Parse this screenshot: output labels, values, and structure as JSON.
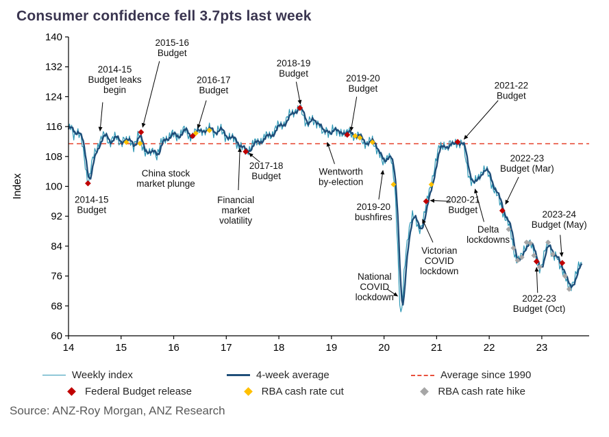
{
  "source": "Source: ANZ-Roy Morgan, ANZ Research",
  "chart_data": {
    "type": "line",
    "title": "Consumer confidence fell 3.7pts last week",
    "ylabel": "Index",
    "ylim": [
      60,
      140
    ],
    "yticks": [
      60,
      68,
      76,
      84,
      92,
      100,
      108,
      116,
      124,
      132,
      140
    ],
    "xlim": [
      14,
      23.9
    ],
    "xticks": [
      14,
      15,
      16,
      17,
      18,
      19,
      20,
      21,
      22,
      23
    ],
    "xtick_labels": [
      "14",
      "15",
      "16",
      "17",
      "18",
      "19",
      "20",
      "21",
      "22",
      "23"
    ],
    "average_since_1990": 111.4,
    "average_label": "Average since 1990",
    "colors": {
      "average": "#e8503c",
      "axis": "#000000",
      "annotation": "#111111"
    },
    "series": [
      {
        "name": "Weekly index",
        "color": "#2d97b5",
        "width": 1.2,
        "derive": "weekly_noise"
      },
      {
        "name": "4-week average",
        "color": "#1f4e79",
        "width": 2.4,
        "derive": "rolling4"
      }
    ],
    "noise": {
      "amp1": 1.1,
      "freq1": 2.31,
      "amp2": 0.8,
      "freq2": 0.57,
      "phase2": 1.3,
      "step": 0.02
    },
    "base_points": [
      [
        14.0,
        114.5
      ],
      [
        14.05,
        116
      ],
      [
        14.1,
        114
      ],
      [
        14.15,
        115.5
      ],
      [
        14.2,
        113.5
      ],
      [
        14.25,
        112
      ],
      [
        14.3,
        108
      ],
      [
        14.35,
        103
      ],
      [
        14.38,
        100.8
      ],
      [
        14.42,
        104
      ],
      [
        14.47,
        107.5
      ],
      [
        14.52,
        110
      ],
      [
        14.6,
        112.5
      ],
      [
        14.7,
        113.5
      ],
      [
        14.78,
        112
      ],
      [
        14.85,
        113
      ],
      [
        14.92,
        112.5
      ],
      [
        15.0,
        112
      ],
      [
        15.05,
        113
      ],
      [
        15.1,
        111.5
      ],
      [
        15.17,
        112.5
      ],
      [
        15.24,
        111
      ],
      [
        15.3,
        112.5
      ],
      [
        15.35,
        113.5
      ],
      [
        15.4,
        111
      ],
      [
        15.47,
        109.5
      ],
      [
        15.55,
        108.2
      ],
      [
        15.62,
        110
      ],
      [
        15.68,
        108.5
      ],
      [
        15.75,
        111
      ],
      [
        15.85,
        113
      ],
      [
        15.95,
        114
      ],
      [
        16.05,
        113
      ],
      [
        16.12,
        114.5
      ],
      [
        16.2,
        115
      ],
      [
        16.28,
        113.5
      ],
      [
        16.36,
        114
      ],
      [
        16.45,
        114.5
      ],
      [
        16.55,
        115.5
      ],
      [
        16.62,
        114.5
      ],
      [
        16.7,
        115.5
      ],
      [
        16.8,
        114.5
      ],
      [
        16.9,
        115
      ],
      [
        17.0,
        113.5
      ],
      [
        17.08,
        112.5
      ],
      [
        17.16,
        112.8
      ],
      [
        17.24,
        111
      ],
      [
        17.3,
        110
      ],
      [
        17.37,
        109.3
      ],
      [
        17.45,
        110.5
      ],
      [
        17.55,
        111.5
      ],
      [
        17.65,
        112.5
      ],
      [
        17.75,
        113
      ],
      [
        17.85,
        114
      ],
      [
        17.95,
        115.5
      ],
      [
        18.05,
        116.5
      ],
      [
        18.15,
        118
      ],
      [
        18.25,
        119.5
      ],
      [
        18.33,
        121
      ],
      [
        18.4,
        120.5
      ],
      [
        18.47,
        118.5
      ],
      [
        18.53,
        117
      ],
      [
        18.6,
        118
      ],
      [
        18.67,
        116.5
      ],
      [
        18.74,
        117.5
      ],
      [
        18.78,
        117
      ],
      [
        18.82,
        114.5
      ],
      [
        18.86,
        113.5
      ],
      [
        18.9,
        115
      ],
      [
        18.95,
        114.5
      ],
      [
        19.02,
        115.5
      ],
      [
        19.1,
        114
      ],
      [
        19.18,
        115
      ],
      [
        19.28,
        113.8
      ],
      [
        19.36,
        114.5
      ],
      [
        19.45,
        113.5
      ],
      [
        19.54,
        113
      ],
      [
        19.62,
        112
      ],
      [
        19.7,
        111.5
      ],
      [
        19.78,
        112
      ],
      [
        19.86,
        110.5
      ],
      [
        19.93,
        108
      ],
      [
        19.98,
        105.5
      ],
      [
        20.03,
        107.5
      ],
      [
        20.08,
        109
      ],
      [
        20.13,
        108
      ],
      [
        20.17,
        103
      ],
      [
        20.2,
        100
      ],
      [
        20.23,
        93
      ],
      [
        20.26,
        84
      ],
      [
        20.29,
        72
      ],
      [
        20.32,
        66
      ],
      [
        20.35,
        69
      ],
      [
        20.38,
        76
      ],
      [
        20.42,
        82
      ],
      [
        20.46,
        87
      ],
      [
        20.5,
        91
      ],
      [
        20.54,
        93
      ],
      [
        20.58,
        91.5
      ],
      [
        20.62,
        89.5
      ],
      [
        20.66,
        87.8
      ],
      [
        20.7,
        89
      ],
      [
        20.74,
        91.5
      ],
      [
        20.78,
        94
      ],
      [
        20.82,
        96
      ],
      [
        20.86,
        98
      ],
      [
        20.9,
        100.5
      ],
      [
        20.94,
        104
      ],
      [
        20.98,
        107
      ],
      [
        21.02,
        109
      ],
      [
        21.06,
        110.5
      ],
      [
        21.1,
        110
      ],
      [
        21.15,
        111.5
      ],
      [
        21.2,
        110.5
      ],
      [
        21.25,
        111.5
      ],
      [
        21.3,
        110.5
      ],
      [
        21.35,
        112
      ],
      [
        21.4,
        112
      ],
      [
        21.45,
        111.5
      ],
      [
        21.5,
        111
      ],
      [
        21.53,
        109
      ],
      [
        21.57,
        106
      ],
      [
        21.62,
        103
      ],
      [
        21.67,
        101
      ],
      [
        21.72,
        100.5
      ],
      [
        21.77,
        102
      ],
      [
        21.82,
        103.5
      ],
      [
        21.87,
        104.5
      ],
      [
        21.92,
        104
      ],
      [
        21.97,
        103.5
      ],
      [
        22.02,
        102
      ],
      [
        22.07,
        100
      ],
      [
        22.12,
        98.5
      ],
      [
        22.17,
        96.5
      ],
      [
        22.22,
        95
      ],
      [
        22.27,
        93
      ],
      [
        22.32,
        91.5
      ],
      [
        22.37,
        89.5
      ],
      [
        22.42,
        86.5
      ],
      [
        22.46,
        83.5
      ],
      [
        22.5,
        81.5
      ],
      [
        22.54,
        80.2
      ],
      [
        22.58,
        80.5
      ],
      [
        22.62,
        81
      ],
      [
        22.66,
        83
      ],
      [
        22.71,
        85
      ],
      [
        22.75,
        85.8
      ],
      [
        22.79,
        84.5
      ],
      [
        22.83,
        82.5
      ],
      [
        22.87,
        81
      ],
      [
        22.91,
        80
      ],
      [
        22.96,
        78.5
      ],
      [
        23.0,
        78.5
      ],
      [
        23.04,
        81
      ],
      [
        23.08,
        83.5
      ],
      [
        23.12,
        85
      ],
      [
        23.16,
        84
      ],
      [
        23.2,
        82
      ],
      [
        23.24,
        80.5
      ],
      [
        23.28,
        80.8
      ],
      [
        23.32,
        79.5
      ],
      [
        23.36,
        79
      ],
      [
        23.4,
        78
      ],
      [
        23.44,
        76
      ],
      [
        23.48,
        73.5
      ],
      [
        23.52,
        72.5
      ],
      [
        23.56,
        73.5
      ],
      [
        23.6,
        75
      ],
      [
        23.64,
        76.5
      ],
      [
        23.68,
        77.5
      ],
      [
        23.72,
        78.5
      ],
      [
        23.76,
        79
      ]
    ],
    "markers": {
      "budget": {
        "label": "Federal Budget release",
        "color": "#c00000",
        "points": [
          [
            14.37,
            100.8
          ],
          [
            15.38,
            114.5
          ],
          [
            16.36,
            113.5
          ],
          [
            17.37,
            109.3
          ],
          [
            18.4,
            121.0
          ],
          [
            19.3,
            113.8
          ],
          [
            20.8,
            96.0
          ],
          [
            21.4,
            111.9
          ],
          [
            22.25,
            93.5
          ],
          [
            22.9,
            79.9
          ],
          [
            23.39,
            79.5
          ]
        ]
      },
      "rate_cut": {
        "label": "RBA cash rate cut",
        "color": "#ffc000",
        "points": [
          [
            15.1,
            111.8
          ],
          [
            15.36,
            111.5
          ],
          [
            16.42,
            114.2
          ],
          [
            16.68,
            115.0
          ],
          [
            19.45,
            113.5
          ],
          [
            19.54,
            113.0
          ],
          [
            19.78,
            111.8
          ],
          [
            20.18,
            100.5
          ],
          [
            20.9,
            100.5
          ]
        ]
      },
      "rate_hike": {
        "label": "RBA cash rate hike",
        "color": "#a6a6a6",
        "points": [
          [
            22.37,
            88.5
          ],
          [
            22.46,
            83.5
          ],
          [
            22.54,
            80.2
          ],
          [
            22.62,
            81.0
          ],
          [
            22.71,
            85.0
          ],
          [
            22.78,
            84.8
          ],
          [
            22.85,
            81.5
          ],
          [
            22.96,
            78.4
          ],
          [
            23.12,
            85.0
          ],
          [
            23.21,
            81.8
          ],
          [
            23.44,
            76.0
          ],
          [
            23.52,
            72.5
          ]
        ]
      }
    },
    "annotations": [
      {
        "lines": [
          "2014-15",
          "Budget leaks",
          "begin"
        ],
        "x": 14.88,
        "y": 128.5,
        "arrow": [
          14.65,
          122.5,
          14.6,
          114.8
        ]
      },
      {
        "lines": [
          "2015-16",
          "Budget"
        ],
        "x": 15.97,
        "y": 137.0,
        "arrow": [
          15.73,
          133.5,
          15.41,
          115.8
        ]
      },
      {
        "lines": [
          "2016-17",
          "Budget"
        ],
        "x": 16.76,
        "y": 127.0,
        "arrow": [
          16.62,
          123.0,
          16.46,
          115.5
        ]
      },
      {
        "lines": [
          "2018-19",
          "Budget"
        ],
        "x": 18.28,
        "y": 131.5,
        "arrow": [
          18.33,
          128.0,
          18.41,
          122.0
        ]
      },
      {
        "lines": [
          "2019-20",
          "Budget"
        ],
        "x": 19.6,
        "y": 127.5,
        "arrow": [
          19.48,
          124.0,
          19.37,
          114.8
        ]
      },
      {
        "lines": [
          "2021-22",
          "Budget"
        ],
        "x": 22.42,
        "y": 125.5,
        "arrow": [
          22.17,
          123.0,
          21.52,
          112.6
        ]
      },
      {
        "lines": [
          "China stock",
          "market plunge"
        ],
        "x": 15.85,
        "y": 102.0,
        "arrow": null
      },
      {
        "lines": [
          "2014-15",
          "Budget"
        ],
        "x": 14.44,
        "y": 95.0,
        "arrow": null
      },
      {
        "lines": [
          "2017-18",
          "Budget"
        ],
        "x": 17.76,
        "y": 104.0,
        "arrow": [
          17.64,
          106.5,
          17.43,
          108.9
        ]
      },
      {
        "lines": [
          "Financial",
          "market",
          "volatility"
        ],
        "x": 17.18,
        "y": 93.5,
        "arrow": [
          17.23,
          99.0,
          17.26,
          110.3
        ]
      },
      {
        "lines": [
          "Wentworth",
          "by-election"
        ],
        "x": 19.18,
        "y": 102.5,
        "arrow": [
          19.06,
          106.0,
          18.92,
          111.8
        ]
      },
      {
        "lines": [
          "2019-20",
          "bushfires"
        ],
        "x": 19.8,
        "y": 93.0,
        "arrow": [
          19.9,
          96.5,
          19.98,
          104.3
        ]
      },
      {
        "lines": [
          "National",
          "COVID",
          "lockdown"
        ],
        "x": 19.82,
        "y": 73.0,
        "arrow": [
          20.06,
          72.5,
          20.26,
          70.6
        ]
      },
      {
        "lines": [
          "Victorian",
          "COVID",
          "lockdown"
        ],
        "x": 21.05,
        "y": 80.0,
        "arrow": [
          20.93,
          85.0,
          20.73,
          91.2
        ]
      },
      {
        "lines": [
          "2020-21",
          "Budget"
        ],
        "x": 21.5,
        "y": 95.0,
        "arrow": [
          21.27,
          96.0,
          20.88,
          96.2
        ]
      },
      {
        "lines": [
          "Delta",
          "lockdowns"
        ],
        "x": 21.98,
        "y": 87.0,
        "arrow": [
          21.9,
          90.5,
          21.73,
          99.3
        ]
      },
      {
        "lines": [
          "2022-23",
          "Budget (Mar)"
        ],
        "x": 22.72,
        "y": 106.0,
        "arrow": [
          22.56,
          102.5,
          22.31,
          95.2
        ]
      },
      {
        "lines": [
          "2023-24",
          "Budget (May)"
        ],
        "x": 23.33,
        "y": 91.0,
        "arrow": [
          23.35,
          87.0,
          23.38,
          81.2
        ]
      },
      {
        "lines": [
          "2022-23",
          "Budget (Oct)"
        ],
        "x": 22.95,
        "y": 68.5,
        "arrow": [
          22.92,
          71.5,
          22.9,
          78.3
        ]
      }
    ]
  }
}
